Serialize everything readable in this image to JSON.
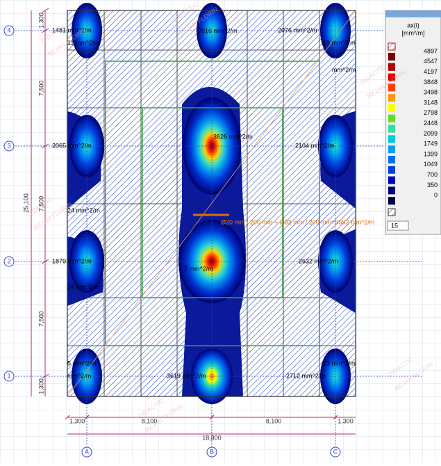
{
  "axes_rows": [
    "4",
    "3",
    "2",
    "1"
  ],
  "axes_cols": [
    "A",
    "B",
    "C"
  ],
  "dims_left_total": "25,100",
  "dims_left": [
    "1,300",
    "7,500",
    "7,500",
    "7,500",
    "1,300"
  ],
  "dims_bottom": [
    "1,300",
    "8,100",
    "8,100",
    "1,300"
  ],
  "dims_bottom_total": "18,800",
  "labels": [
    "1481 mm^2/m",
    "2616 mm^2/m",
    "2076 mm^2/m",
    "11 mm^2/m",
    "19 mm^2/m",
    "mm^2/m",
    "3626 mm^2/m",
    "2065 mm^2/m",
    "2104 mm^2/m",
    "24 mm^2/m",
    "Ø20 mm / 200 mm + Ø32 mm / 200 mm=5592 mm^2/m",
    "1879 mm^2/m",
    "2632 mm^2/m",
    "7 mm^2/m",
    "24 mm^2/m",
    "5 mm^2/m",
    "23 mm^2/m",
    "mm^2/m",
    "3619 mm^2/m",
    "2712 mm^2/m"
  ],
  "watermark": [
    "DIDACTIC",
    "BEJAN FLORIN"
  ],
  "legend": {
    "title": "ax(i)",
    "unit": "[mm²/m]",
    "values": [
      4897,
      4547,
      4197,
      3848,
      3498,
      3148,
      2798,
      2448,
      2099,
      1749,
      1399,
      1049,
      700,
      350,
      0
    ],
    "colors": [
      "#7a0000",
      "#b00000",
      "#e00000",
      "#ff4000",
      "#ff9800",
      "#ffff00",
      "#60e020",
      "#30e0a0",
      "#00c8e0",
      "#00a0f0",
      "#0070f0",
      "#0040e0",
      "#0000c0",
      "#000080",
      "#000040"
    ],
    "step": "15"
  }
}
